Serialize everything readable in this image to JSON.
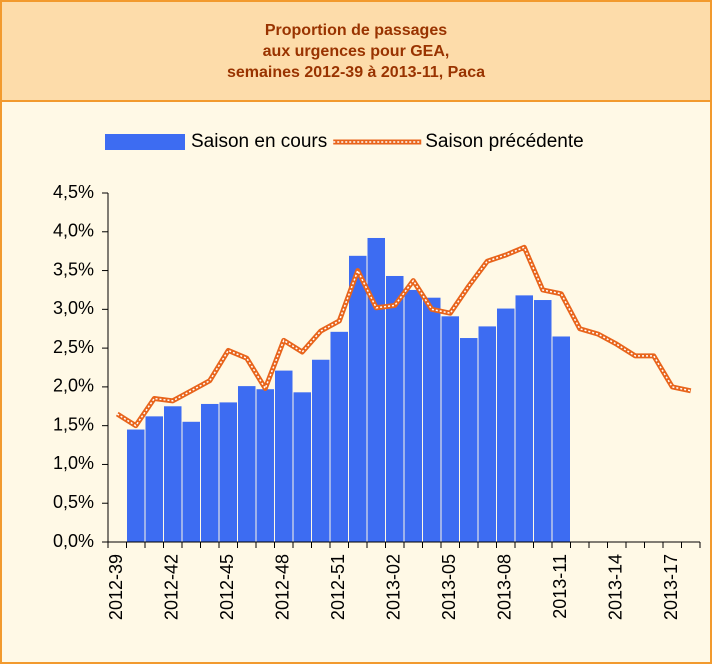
{
  "chart_data": {
    "type": "bar-line",
    "title": [
      "Proportion de passages",
      "aux urgences pour GEA,",
      "semaines 2012-39 à 2013-11, Paca"
    ],
    "categories": [
      "2012-39",
      null,
      null,
      "2012-42",
      null,
      null,
      "2012-45",
      null,
      null,
      "2012-48",
      null,
      null,
      "2012-51",
      null,
      null,
      "2013-02",
      null,
      null,
      "2013-05",
      null,
      null,
      "2013-08",
      null,
      null,
      "2013-11",
      null,
      null,
      "2013-14",
      null,
      null,
      "2013-17",
      null
    ],
    "series": [
      {
        "name": "Saison en cours",
        "type": "bar",
        "color": "#3d6cf2",
        "values": [
          null,
          1.45,
          1.62,
          1.75,
          1.55,
          1.78,
          1.8,
          2.01,
          1.97,
          2.21,
          1.93,
          2.35,
          2.71,
          3.69,
          3.92,
          3.43,
          3.25,
          3.15,
          2.91,
          2.63,
          2.78,
          3.01,
          3.18,
          3.12,
          2.65,
          null,
          null,
          null,
          null,
          null,
          null,
          null
        ]
      },
      {
        "name": "Saison précédente",
        "type": "line",
        "color": "#e8641b",
        "values": [
          1.65,
          1.5,
          1.85,
          1.82,
          1.95,
          2.08,
          2.47,
          2.37,
          1.98,
          2.6,
          2.45,
          2.72,
          2.85,
          3.5,
          3.02,
          3.05,
          3.37,
          3.0,
          2.95,
          3.3,
          3.62,
          3.7,
          3.8,
          3.25,
          3.2,
          2.75,
          2.68,
          2.55,
          2.4,
          2.4,
          2.0,
          1.95
        ]
      }
    ],
    "ylim": [
      0,
      4.5
    ],
    "yticks": [
      {
        "value": 0,
        "label": "0,0%"
      },
      {
        "value": 0.5,
        "label": "0,5%"
      },
      {
        "value": 1,
        "label": "1,0%"
      },
      {
        "value": 1.5,
        "label": "1,5%"
      },
      {
        "value": 2,
        "label": "2,0%"
      },
      {
        "value": 2.5,
        "label": "2,5%"
      },
      {
        "value": 3,
        "label": "3,0%"
      },
      {
        "value": 3.5,
        "label": "3,5%"
      },
      {
        "value": 4,
        "label": "4,0%"
      },
      {
        "value": 4.5,
        "label": "4,5%"
      }
    ],
    "grid": false
  }
}
